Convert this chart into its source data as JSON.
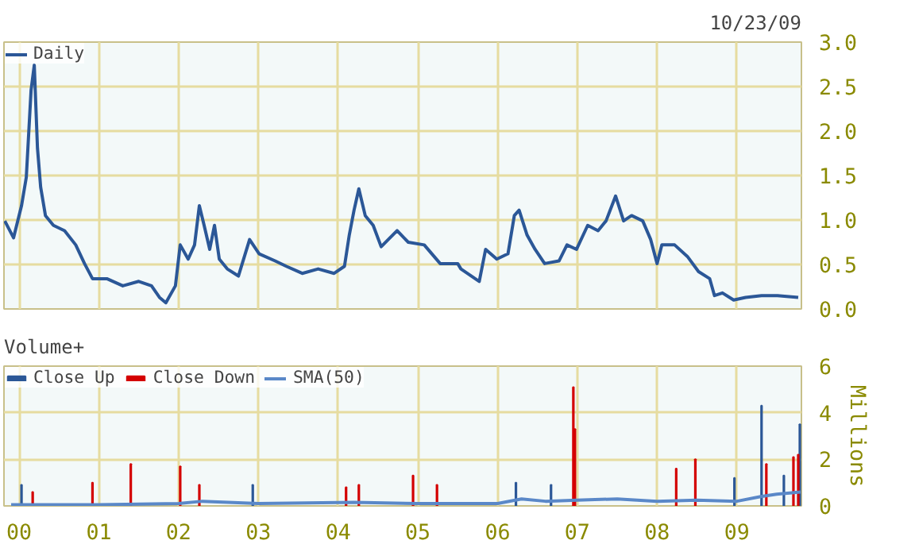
{
  "chart_data": [
    {
      "type": "line",
      "annotations": [
        "10/23/09"
      ],
      "legend": "top left",
      "grid": true,
      "tick_labels": "y",
      "xlim": [
        1999.81,
        2009.81
      ],
      "ylim": [
        0,
        3
      ],
      "xticks": [
        {
          "value": 2000,
          "label": null
        },
        {
          "value": 2001,
          "label": null
        },
        {
          "value": 2002,
          "label": null
        },
        {
          "value": 2003,
          "label": null
        },
        {
          "value": 2004,
          "label": null
        },
        {
          "value": 2005,
          "label": null
        },
        {
          "value": 2006,
          "label": null
        },
        {
          "value": 2007,
          "label": null
        },
        {
          "value": 2008,
          "label": null
        },
        {
          "value": 2009,
          "label": null
        }
      ],
      "yticks": [
        {
          "value": 0,
          "label": "0.0"
        },
        {
          "value": 0.5,
          "label": "0.5"
        },
        {
          "value": 1,
          "label": "1.0"
        },
        {
          "value": 1.5,
          "label": "1.5"
        },
        {
          "value": 2,
          "label": "2.0"
        },
        {
          "value": 2.5,
          "label": "2.5"
        },
        {
          "value": 3,
          "label": "3.0"
        }
      ],
      "series": [
        {
          "name": "Daily",
          "color": "#2b5797",
          "x": [
            1999.82,
            1999.93,
            2000.03,
            2000.09,
            2000.15,
            2000.19,
            2000.23,
            2000.27,
            2000.33,
            2000.43,
            2000.57,
            2000.71,
            2000.82,
            2000.92,
            2001.1,
            2001.3,
            2001.5,
            2001.66,
            2001.76,
            2001.84,
            2001.96,
            2002.02,
            2002.12,
            2002.2,
            2002.26,
            2002.32,
            2002.39,
            2002.45,
            2002.51,
            2002.61,
            2002.75,
            2002.89,
            2003.01,
            2003.21,
            2003.35,
            2003.55,
            2003.75,
            2003.95,
            2004.08,
            2004.14,
            2004.2,
            2004.26,
            2004.34,
            2004.44,
            2004.54,
            2004.74,
            2004.88,
            2005.08,
            2005.28,
            2005.5,
            2005.54,
            2005.77,
            2005.85,
            2005.99,
            2006.13,
            2006.21,
            2006.27,
            2006.37,
            2006.47,
            2006.59,
            2006.77,
            2006.87,
            2006.99,
            2007.13,
            2007.26,
            2007.36,
            2007.48,
            2007.58,
            2007.68,
            2007.82,
            2007.92,
            2008.0,
            2008.06,
            2008.22,
            2008.38,
            2008.52,
            2008.66,
            2008.72,
            2008.82,
            2008.96,
            2009.11,
            2009.31,
            2009.51,
            2009.77
          ],
          "values": [
            0.99,
            0.8,
            1.16,
            1.48,
            2.46,
            2.74,
            1.81,
            1.37,
            1.05,
            0.94,
            0.88,
            0.72,
            0.51,
            0.34,
            0.34,
            0.26,
            0.31,
            0.26,
            0.13,
            0.07,
            0.26,
            0.72,
            0.56,
            0.72,
            1.16,
            0.94,
            0.67,
            0.94,
            0.56,
            0.45,
            0.37,
            0.78,
            0.62,
            0.54,
            0.48,
            0.4,
            0.45,
            0.4,
            0.48,
            0.83,
            1.11,
            1.35,
            1.05,
            0.94,
            0.7,
            0.88,
            0.75,
            0.72,
            0.51,
            0.51,
            0.45,
            0.31,
            0.67,
            0.56,
            0.62,
            1.05,
            1.11,
            0.83,
            0.67,
            0.51,
            0.54,
            0.72,
            0.67,
            0.94,
            0.88,
            0.99,
            1.27,
            0.99,
            1.05,
            0.99,
            0.78,
            0.51,
            0.72,
            0.72,
            0.59,
            0.42,
            0.34,
            0.15,
            0.18,
            0.1,
            0.13,
            0.15,
            0.15,
            0.13
          ]
        }
      ]
    },
    {
      "type": "bar",
      "legend_title": "Volume+",
      "legend": "top left",
      "grid": true,
      "ylabel": "Millions",
      "xlim": [
        1999.81,
        2009.81
      ],
      "ylim": [
        0,
        6
      ],
      "xticks": [
        {
          "value": 2000,
          "label": "00"
        },
        {
          "value": 2001,
          "label": "01"
        },
        {
          "value": 2002,
          "label": "02"
        },
        {
          "value": 2003,
          "label": "03"
        },
        {
          "value": 2004,
          "label": "04"
        },
        {
          "value": 2005,
          "label": "05"
        },
        {
          "value": 2006,
          "label": "06"
        },
        {
          "value": 2007,
          "label": "07"
        },
        {
          "value": 2008,
          "label": "08"
        },
        {
          "value": 2009,
          "label": "09"
        }
      ],
      "yticks": [
        0,
        2,
        4,
        6
      ],
      "series": [
        {
          "name": "Close Up",
          "color": "#2b5797",
          "x": [
            2000.03,
            2002.93,
            2006.23,
            2006.67,
            2008.97,
            2009.31,
            2009.59,
            2009.79
          ],
          "values": [
            0.9,
            0.9,
            1.0,
            0.9,
            1.2,
            4.3,
            1.3,
            3.5
          ]
        },
        {
          "name": "Close Down",
          "color": "#d40000",
          "x": [
            2000.17,
            2000.92,
            2001.4,
            2002.02,
            2002.26,
            2004.1,
            2004.26,
            2004.94,
            2005.24,
            2006.95,
            2006.97,
            2008.24,
            2008.48,
            2009.37,
            2009.71,
            2009.77
          ],
          "values": [
            0.6,
            1.0,
            1.8,
            1.7,
            0.9,
            0.8,
            0.9,
            1.3,
            0.9,
            5.1,
            3.3,
            1.6,
            2.0,
            1.8,
            2.1,
            2.2
          ]
        },
        {
          "name": "SMA(50)",
          "type": "line",
          "color": "#5a88c8",
          "x": [
            1999.9,
            2001.0,
            2002.0,
            2002.3,
            2003.0,
            2004.2,
            2005.0,
            2006.0,
            2006.3,
            2006.6,
            2007.0,
            2007.5,
            2008.0,
            2008.5,
            2009.0,
            2009.3,
            2009.5,
            2009.8
          ],
          "values": [
            0.05,
            0.05,
            0.1,
            0.2,
            0.1,
            0.15,
            0.1,
            0.1,
            0.3,
            0.2,
            0.25,
            0.3,
            0.2,
            0.25,
            0.2,
            0.4,
            0.5,
            0.6
          ]
        }
      ]
    }
  ]
}
